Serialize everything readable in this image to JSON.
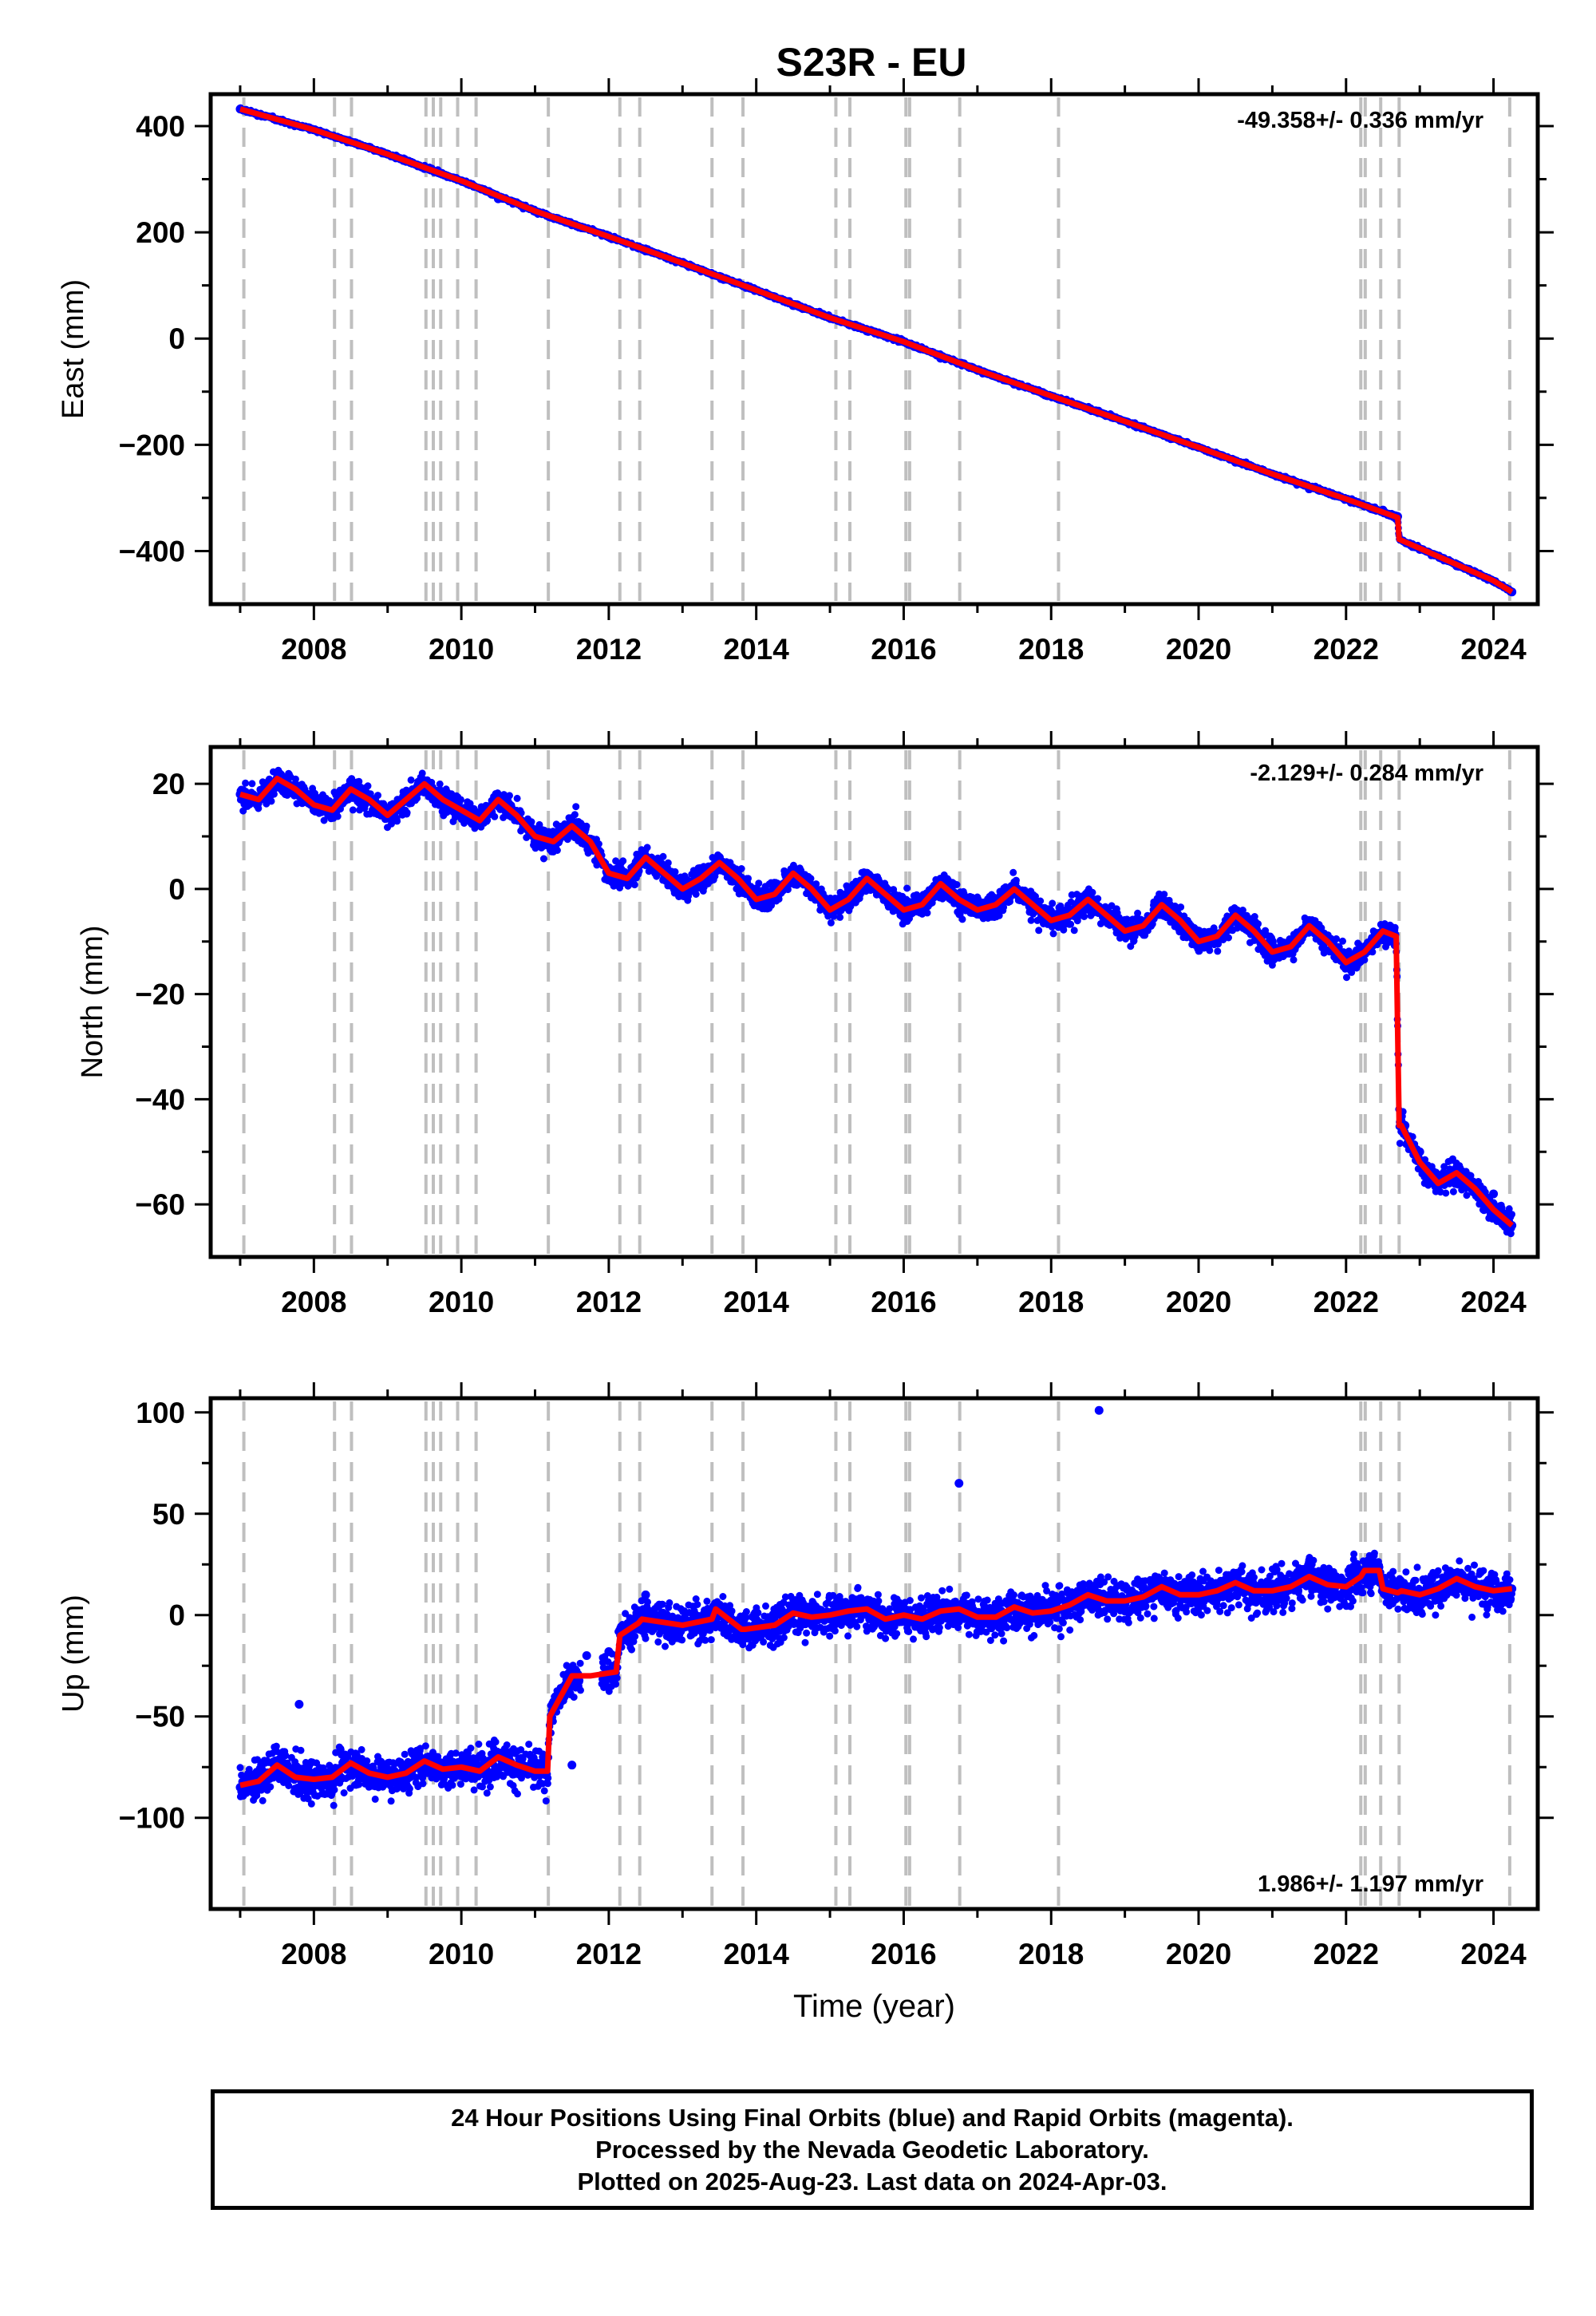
{
  "title": "S23R - EU",
  "caption": {
    "line1": "24 Hour Positions Using Final Orbits (blue) and Rapid Orbits (magenta).",
    "line2": "Processed by the Nevada Geodetic Laboratory.",
    "line3": "Plotted on 2025-Aug-23. Last data on 2024-Apr-03."
  },
  "colors": {
    "data": "#0000ff",
    "model": "#ff0000",
    "events": "#bfbfbf",
    "frame": "#000000"
  },
  "chart_data": [
    {
      "type": "scatter",
      "ylabel": "East (mm)",
      "xlabel": "",
      "xlim": [
        2006.6,
        2024.6
      ],
      "ylim": [
        -500,
        460
      ],
      "xticks": [
        2008,
        2010,
        2012,
        2014,
        2016,
        2018,
        2020,
        2022,
        2024
      ],
      "yticks": [
        400,
        200,
        0,
        -200,
        -400
      ],
      "ytick_labels": [
        "400",
        "200",
        "0",
        "−200",
        "−400"
      ],
      "rate": "-49.358+/- 0.336 mm/yr",
      "rate_position": "top-right",
      "event_lines": [
        2007.05,
        2008.28,
        2008.51,
        2009.52,
        2009.62,
        2009.72,
        2009.95,
        2010.2,
        2011.18,
        2012.15,
        2012.42,
        2013.4,
        2013.82,
        2015.08,
        2015.27,
        2016.03,
        2016.08,
        2016.76,
        2018.1,
        2022.2,
        2022.26,
        2022.47,
        2022.72,
        2024.22
      ],
      "series": [
        {
          "name": "",
          "style": "points",
          "color": "#0000ff",
          "x": [
            2007.0,
            2007.5,
            2008.0,
            2008.5,
            2009.0,
            2009.5,
            2010.0,
            2010.5,
            2011.0,
            2011.5,
            2012.0,
            2012.5,
            2013.0,
            2013.5,
            2014.0,
            2014.5,
            2015.0,
            2015.5,
            2016.0,
            2016.5,
            2017.0,
            2017.5,
            2018.0,
            2018.5,
            2019.0,
            2019.5,
            2020.0,
            2020.5,
            2021.0,
            2021.5,
            2022.0,
            2022.5,
            2022.7,
            2023.0,
            2023.5,
            2024.0,
            2024.25
          ],
          "y": [
            432,
            412,
            393,
            370,
            347,
            320,
            297,
            263,
            240,
            214,
            192,
            165,
            142,
            117,
            91,
            62,
            39,
            14,
            -6,
            -37,
            -59,
            -86,
            -108,
            -132,
            -156,
            -180,
            -205,
            -233,
            -255,
            -283,
            -302,
            -323,
            -335,
            -397,
            -428,
            -457,
            -477
          ]
        },
        {
          "name": "",
          "style": "line",
          "color": "#ff0000",
          "x": [
            2007.0,
            2008.0,
            2009.0,
            2010.0,
            2011.0,
            2012.0,
            2013.0,
            2014.0,
            2015.0,
            2016.0,
            2017.0,
            2018.0,
            2019.0,
            2020.0,
            2021.0,
            2022.0,
            2022.7,
            2022.72,
            2023.0,
            2024.0,
            2024.25
          ],
          "y": [
            432,
            393,
            347,
            297,
            240,
            192,
            142,
            91,
            39,
            -6,
            -59,
            -108,
            -156,
            -205,
            -255,
            -302,
            -337,
            -378,
            -395,
            -456,
            -477
          ]
        }
      ]
    },
    {
      "type": "scatter",
      "ylabel": "North (mm)",
      "xlabel": "",
      "xlim": [
        2006.6,
        2024.6
      ],
      "ylim": [
        -70,
        27
      ],
      "xticks": [
        2008,
        2010,
        2012,
        2014,
        2016,
        2018,
        2020,
        2022,
        2024
      ],
      "yticks": [
        20,
        0,
        -20,
        -40,
        -60
      ],
      "ytick_labels": [
        "20",
        "0",
        "−20",
        "−40",
        "−60"
      ],
      "rate": "-2.129+/- 0.284 mm/yr",
      "rate_position": "top-right",
      "event_lines": [
        2007.05,
        2008.28,
        2008.51,
        2009.52,
        2009.62,
        2009.72,
        2009.95,
        2010.2,
        2011.18,
        2012.15,
        2012.42,
        2013.4,
        2013.82,
        2015.08,
        2015.27,
        2016.03,
        2016.08,
        2016.76,
        2018.1,
        2022.2,
        2022.26,
        2022.47,
        2022.72,
        2024.22
      ],
      "series": [
        {
          "name": "",
          "style": "points",
          "color": "#0000ff",
          "x": [
            2007.0,
            2007.5,
            2008.0,
            2008.5,
            2009.0,
            2009.5,
            2010.0,
            2010.5,
            2011.0,
            2011.5,
            2012.0,
            2012.5,
            2013.0,
            2013.5,
            2014.0,
            2014.5,
            2015.0,
            2015.5,
            2016.0,
            2016.5,
            2017.0,
            2017.5,
            2018.0,
            2018.5,
            2019.0,
            2019.5,
            2020.0,
            2020.5,
            2021.0,
            2021.5,
            2022.0,
            2022.5,
            2022.65,
            2022.8,
            2023.0,
            2023.5,
            2024.0,
            2024.25
          ],
          "y": [
            18,
            21,
            15,
            19,
            14,
            20,
            14,
            17,
            11,
            11,
            4,
            6,
            1,
            6,
            0,
            3,
            -2,
            3,
            -3,
            1,
            -2,
            0,
            -5,
            -1,
            -6,
            -2,
            -8,
            -4,
            -10,
            -6,
            -13,
            -9,
            -9,
            -45,
            -50,
            -53,
            -58,
            -64
          ]
        },
        {
          "name": "",
          "style": "line",
          "color": "#ff0000",
          "x": [
            2007.0,
            2007.25,
            2007.5,
            2007.75,
            2008.0,
            2008.25,
            2008.5,
            2008.75,
            2009.0,
            2009.25,
            2009.5,
            2009.75,
            2010.0,
            2010.25,
            2010.5,
            2010.75,
            2011.0,
            2011.25,
            2011.5,
            2011.75,
            2012.0,
            2012.25,
            2012.5,
            2012.75,
            2013.0,
            2013.25,
            2013.5,
            2013.75,
            2014.0,
            2014.25,
            2014.5,
            2014.75,
            2015.0,
            2015.25,
            2015.5,
            2015.75,
            2016.0,
            2016.25,
            2016.5,
            2016.75,
            2017.0,
            2017.25,
            2017.5,
            2017.75,
            2018.0,
            2018.25,
            2018.5,
            2018.75,
            2019.0,
            2019.25,
            2019.5,
            2019.75,
            2020.0,
            2020.25,
            2020.5,
            2020.75,
            2021.0,
            2021.25,
            2021.5,
            2021.75,
            2022.0,
            2022.25,
            2022.5,
            2022.68,
            2022.72,
            2022.75,
            2023.0,
            2023.25,
            2023.5,
            2023.75,
            2024.0,
            2024.25
          ],
          "y": [
            18,
            17,
            21,
            19,
            16,
            15,
            19,
            17,
            14,
            17,
            20,
            17,
            15,
            13,
            17,
            14,
            10,
            9,
            12,
            9,
            3,
            2,
            6,
            3,
            0,
            2,
            5,
            2,
            -2,
            -1,
            3,
            0,
            -4,
            -2,
            2,
            -1,
            -4,
            -3,
            1,
            -2,
            -4,
            -3,
            0,
            -3,
            -6,
            -5,
            -2,
            -5,
            -8,
            -7,
            -3,
            -6,
            -10,
            -9,
            -5,
            -8,
            -12,
            -11,
            -7,
            -10,
            -14,
            -12,
            -8,
            -9,
            -45,
            -45,
            -52,
            -56,
            -54,
            -57,
            -61,
            -64
          ]
        }
      ]
    },
    {
      "type": "scatter",
      "ylabel": "Up (mm)",
      "xlabel": "Time (year)",
      "xlim": [
        2006.6,
        2024.6
      ],
      "ylim": [
        -145,
        107
      ],
      "xticks": [
        2008,
        2010,
        2012,
        2014,
        2016,
        2018,
        2020,
        2022,
        2024
      ],
      "yticks": [
        100,
        50,
        0,
        -50,
        -100
      ],
      "ytick_labels": [
        "100",
        "50",
        "0",
        "−50",
        "−100"
      ],
      "rate": "1.986+/- 1.197 mm/yr",
      "rate_position": "bottom-right",
      "event_lines": [
        2007.05,
        2008.28,
        2008.51,
        2009.52,
        2009.62,
        2009.72,
        2009.95,
        2010.2,
        2011.18,
        2012.15,
        2012.42,
        2013.4,
        2013.82,
        2015.08,
        2015.27,
        2016.03,
        2016.08,
        2016.76,
        2018.1,
        2022.2,
        2022.26,
        2022.47,
        2022.72,
        2024.22
      ],
      "series": [
        {
          "name": "",
          "style": "points",
          "color": "#0000ff",
          "x": [
            2007.0,
            2007.5,
            2007.8,
            2008.0,
            2008.5,
            2009.0,
            2009.5,
            2010.0,
            2010.5,
            2011.0,
            2011.5,
            2011.7,
            2012.0,
            2012.3,
            2012.5,
            2013.0,
            2013.5,
            2014.0,
            2014.5,
            2015.0,
            2015.5,
            2016.0,
            2016.5,
            2016.75,
            2017.0,
            2017.5,
            2018.0,
            2018.5,
            2018.65,
            2019.0,
            2019.5,
            2020.0,
            2020.5,
            2021.0,
            2021.5,
            2022.0,
            2022.3,
            2022.5,
            2023.0,
            2023.5,
            2024.0,
            2024.25
          ],
          "y": [
            -85,
            -76,
            -44,
            -80,
            -74,
            -80,
            -72,
            -76,
            -70,
            -75,
            -74,
            -20,
            -18,
            -3,
            10,
            -3,
            5,
            -5,
            5,
            -2,
            3,
            -3,
            2,
            65,
            -1,
            4,
            3,
            8,
            101,
            5,
            12,
            8,
            14,
            10,
            16,
            12,
            18,
            14,
            10,
            14,
            12,
            13
          ]
        },
        {
          "name": "",
          "style": "line",
          "color": "#ff0000",
          "x": [
            2007.0,
            2007.25,
            2007.5,
            2007.75,
            2008.0,
            2008.25,
            2008.5,
            2008.75,
            2009.0,
            2009.25,
            2009.5,
            2009.75,
            2010.0,
            2010.25,
            2010.5,
            2010.75,
            2011.0,
            2011.17,
            2011.2,
            2011.5,
            2011.75,
            2012.1,
            2012.15,
            2012.4,
            2012.45,
            2013.0,
            2013.4,
            2013.45,
            2013.8,
            2013.85,
            2014.25,
            2014.5,
            2014.75,
            2015.0,
            2015.25,
            2015.5,
            2015.75,
            2016.0,
            2016.25,
            2016.5,
            2016.75,
            2017.0,
            2017.25,
            2017.5,
            2017.75,
            2018.0,
            2018.25,
            2018.5,
            2018.75,
            2019.0,
            2019.25,
            2019.5,
            2019.75,
            2020.0,
            2020.25,
            2020.5,
            2020.75,
            2021.0,
            2021.25,
            2021.5,
            2021.75,
            2022.0,
            2022.2,
            2022.25,
            2022.45,
            2022.5,
            2022.7,
            2022.75,
            2023.0,
            2023.25,
            2023.5,
            2023.75,
            2024.0,
            2024.25
          ],
          "y": [
            -84,
            -82,
            -74,
            -80,
            -81,
            -80,
            -73,
            -78,
            -80,
            -78,
            -72,
            -76,
            -75,
            -77,
            -70,
            -74,
            -77,
            -77,
            -50,
            -30,
            -30,
            -28,
            -10,
            -4,
            -2,
            -5,
            -2,
            3,
            -7,
            -7,
            -5,
            1,
            -1,
            0,
            2,
            3,
            -2,
            0,
            -2,
            2,
            3,
            -1,
            -1,
            4,
            1,
            2,
            5,
            10,
            7,
            7,
            9,
            14,
            10,
            10,
            12,
            16,
            12,
            12,
            14,
            19,
            15,
            14,
            19,
            22,
            22,
            13,
            11,
            12,
            10,
            13,
            18,
            14,
            12,
            13
          ]
        }
      ]
    }
  ]
}
